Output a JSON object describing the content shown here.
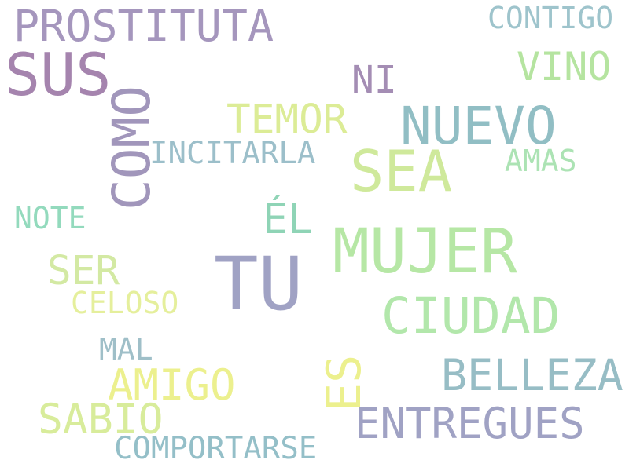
{
  "words": [
    {
      "text": "PROSTITUTA",
      "color": "#a596bd"
    },
    {
      "text": "CONTIGO",
      "color": "#9ec4cc"
    },
    {
      "text": "SUS",
      "color": "#a584ae"
    },
    {
      "text": "VINO",
      "color": "#b5e4a0"
    },
    {
      "text": "NI",
      "color": "#a48db4"
    },
    {
      "text": "COMO",
      "color": "#a196bb"
    },
    {
      "text": "TEMOR",
      "color": "#dcec96"
    },
    {
      "text": "NUEVO",
      "color": "#91bec4"
    },
    {
      "text": "INCITARLA",
      "color": "#9cbfca"
    },
    {
      "text": "SEA",
      "color": "#cfe99b"
    },
    {
      "text": "AMAS",
      "color": "#ace3b4"
    },
    {
      "text": "NOTE",
      "color": "#93dabd"
    },
    {
      "text": "ÉL",
      "color": "#8fd4b6"
    },
    {
      "text": "MUJER",
      "color": "#b6e7a5"
    },
    {
      "text": "SER",
      "color": "#d3e9a3"
    },
    {
      "text": "TU",
      "color": "#a0a2c4"
    },
    {
      "text": "CELOSO",
      "color": "#e5ef9c"
    },
    {
      "text": "CIUDAD",
      "color": "#b2e7ab"
    },
    {
      "text": "MAL",
      "color": "#9fbfc8"
    },
    {
      "text": "ES",
      "color": "#ecf08e"
    },
    {
      "text": "AMIGO",
      "color": "#ecf08e"
    },
    {
      "text": "BELLEZA",
      "color": "#97bdc5"
    },
    {
      "text": "SABIO",
      "color": "#d8ec9b"
    },
    {
      "text": "ENTREGUES",
      "color": "#a0a2c4"
    },
    {
      "text": "COMPORTARSE",
      "color": "#94bfc8"
    }
  ]
}
